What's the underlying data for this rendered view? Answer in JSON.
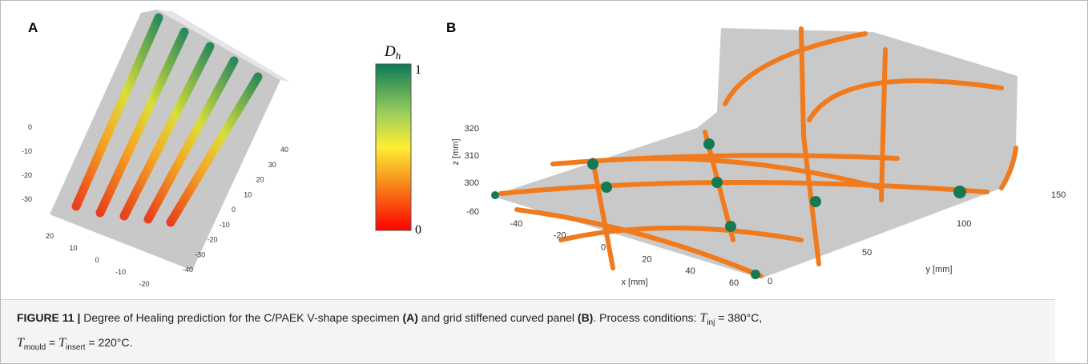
{
  "panel_a": {
    "label": "A",
    "z_ticks": [
      "0",
      "-10",
      "-20",
      "-30"
    ],
    "x_ticks": [
      "20",
      "10",
      "0",
      "-10",
      "-20"
    ],
    "y_ticks": [
      "-40",
      "-30",
      "-20",
      "-10",
      "0",
      "10",
      "20",
      "30",
      "40"
    ]
  },
  "colorbar": {
    "symbol": "D",
    "subscript": "h",
    "max_label": "1",
    "min_label": "0"
  },
  "panel_b": {
    "label": "B",
    "z_axis_label": "z [mm]",
    "z_ticks": [
      "320",
      "310",
      "300"
    ],
    "x_axis_label": "x [mm]",
    "x_ticks": [
      "-60",
      "-40",
      "-20",
      "0",
      "20",
      "40",
      "60"
    ],
    "y_axis_label": "y [mm]",
    "y_ticks": [
      "0",
      "50",
      "100",
      "150"
    ]
  },
  "caption": {
    "figure_label": "FIGURE 11 |",
    "text_1": "Degree of Healing prediction for the C/PAEK V-shape specimen",
    "ref_a": "(A)",
    "text_2": "and grid stiffened curved panel",
    "ref_b": "(B)",
    "text_3": ". Process conditions:",
    "t_inj_symbol": "T",
    "t_inj_sub": "inj",
    "t_inj_value": "= 380°C,",
    "t_mould_symbol": "T",
    "t_mould_sub": "mould",
    "equals": "=",
    "t_insert_symbol": "T",
    "t_insert_sub": "insert",
    "t_insert_value": "= 220°C."
  }
}
